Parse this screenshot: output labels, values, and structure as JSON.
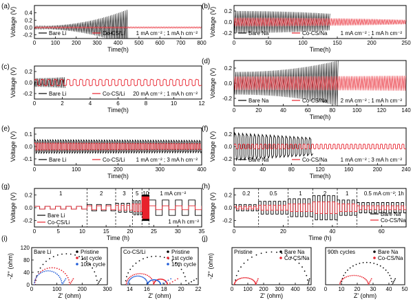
{
  "chart_data": [
    {
      "id": "a",
      "panel_label": "(a)",
      "type": "line",
      "xlabel": "Time(h)",
      "ylabel": "Voltage (V)",
      "xlim": [
        0,
        800
      ],
      "ylim": [
        -0.3,
        0.6
      ],
      "xticks": [
        "0",
        "100",
        "200",
        "300",
        "400",
        "500",
        "600",
        "700",
        "800"
      ],
      "yticks": [
        "-0.2",
        "0.0",
        "0.2",
        "0.4"
      ],
      "annotation": "1 mA cm⁻² ; 1 mA h cm⁻²",
      "legend_position": "bottom-left",
      "series": [
        {
          "name": "Bare Li",
          "color": "#000000",
          "x_end": 450,
          "amp_start": 0.04,
          "amp_end": 0.5,
          "dense": true
        },
        {
          "name": "Co-CS/Li",
          "color": "#e8212c",
          "x_end": 800,
          "amp_start": 0.02,
          "amp_end": 0.02,
          "dense": true
        }
      ]
    },
    {
      "id": "b",
      "panel_label": "(b)",
      "type": "line",
      "xlabel": "Time(h)",
      "ylabel": "Voltage (V)",
      "xlim": [
        0,
        250
      ],
      "ylim": [
        -0.3,
        0.3
      ],
      "xticks": [
        "0",
        "50",
        "100",
        "150",
        "200",
        "250"
      ],
      "yticks": [
        "-0.2",
        "0.0",
        "0.2"
      ],
      "annotation": "1 mA cm⁻² ; 1 mA h cm⁻²",
      "legend_position": "bottom-left",
      "series": [
        {
          "name": "Bare Na",
          "color": "#000000",
          "x_end": 140,
          "amp_start": 0.2,
          "amp_end": 0.15,
          "dense": true
        },
        {
          "name": "Co-CS/Na",
          "color": "#e8212c",
          "x_end": 250,
          "amp_start": 0.08,
          "amp_end": 0.04,
          "dense": true
        }
      ]
    },
    {
      "id": "c",
      "panel_label": "(c)",
      "type": "line",
      "xlabel": "Time(h)",
      "ylabel": "Voltage (V)",
      "xlim": [
        0,
        12
      ],
      "ylim": [
        -0.3,
        0.3
      ],
      "xticks": [
        "0",
        "2",
        "4",
        "6",
        "8",
        "10",
        "12"
      ],
      "yticks": [
        "-0.2",
        "0.0",
        "0.2"
      ],
      "annotation": "20 mA cm⁻² ; 1 mA h cm⁻²",
      "legend_position": "bottom-left",
      "series": [
        {
          "name": "Bare Li",
          "color": "#000000",
          "x_end": 2.2,
          "amp_start": 0.08,
          "amp_end": 0.1,
          "dense": true
        },
        {
          "name": "Co-CS/Li",
          "color": "#e8212c",
          "x_end": 12,
          "amp_start": 0.06,
          "amp_end": 0.06,
          "dense": false,
          "cycles": 26
        }
      ]
    },
    {
      "id": "d",
      "panel_label": "(d)",
      "type": "line",
      "xlabel": "Time(h)",
      "ylabel": "Voltage (V)",
      "xlim": [
        0,
        140
      ],
      "ylim": [
        -0.3,
        0.3
      ],
      "xticks": [
        "0",
        "20",
        "40",
        "60",
        "80",
        "100",
        "120",
        "140"
      ],
      "yticks": [
        "-0.2",
        "0.0",
        "0.2"
      ],
      "annotation": "2 mA cm⁻² ; 1 mA h cm⁻²",
      "legend_position": "bottom-left",
      "series": [
        {
          "name": "Bare Na",
          "color": "#000000",
          "x_end": 85,
          "amp_start": 0.15,
          "amp_end": 0.3,
          "dense": true
        },
        {
          "name": "Co-CS/Na",
          "color": "#e8212c",
          "x_end": 140,
          "amp_start": 0.09,
          "amp_end": 0.1,
          "dense": true
        }
      ]
    },
    {
      "id": "e",
      "panel_label": "(e)",
      "type": "line",
      "xlabel": "Time(h)",
      "ylabel": "Voltage (V)",
      "xlim": [
        0,
        400
      ],
      "ylim": [
        -0.15,
        0.15
      ],
      "xticks": [
        "0",
        "100",
        "200",
        "300",
        "400"
      ],
      "yticks": [
        "-0.1",
        "0.0",
        "0.1"
      ],
      "annotation": "1 mA cm⁻² ; 3 mA h cm⁻²",
      "legend_position": "bottom-left",
      "series": [
        {
          "name": "Bare Li",
          "color": "#000000",
          "x_end": 400,
          "amp_start": 0.055,
          "amp_end": 0.05,
          "dense": false,
          "cycles": 65
        },
        {
          "name": "Co-CS/Li",
          "color": "#e8212c",
          "x_end": 400,
          "amp_start": 0.03,
          "amp_end": 0.025,
          "dense": false,
          "cycles": 65
        }
      ]
    },
    {
      "id": "f",
      "panel_label": "(f)",
      "type": "line",
      "xlabel": "Time(h)",
      "ylabel": "Voltage (V)",
      "xlim": [
        0,
        240
      ],
      "ylim": [
        -0.3,
        0.3
      ],
      "xticks": [
        "0",
        "40",
        "80",
        "120",
        "160",
        "200",
        "240"
      ],
      "yticks": [
        "-0.2",
        "0.0",
        "0.2"
      ],
      "annotation": "1 mA cm⁻² ; 3 mA h cm⁻²",
      "legend_position": "bottom-left",
      "series": [
        {
          "name": "Bare Na",
          "color": "#000000",
          "x_end": 110,
          "amp_start": 0.22,
          "amp_end": 0.14,
          "dense": false,
          "cycles": 20
        },
        {
          "name": "Co-CS/Na",
          "color": "#e8212c",
          "x_end": 240,
          "amp_start": 0.04,
          "amp_end": 0.04,
          "dense": false,
          "cycles": 40
        }
      ]
    },
    {
      "id": "g",
      "panel_label": "(g)",
      "type": "line",
      "xlabel": "Time (h)",
      "ylabel": "Voltage (V)",
      "xlim": [
        0,
        35
      ],
      "ylim": [
        -0.3,
        0.3
      ],
      "xticks": [
        "0",
        "5",
        "10",
        "15",
        "20",
        "25",
        "30",
        "35"
      ],
      "yticks": [
        "-0.2",
        "0.0",
        "0.2"
      ],
      "dividers_x": [
        11,
        17,
        20.5,
        22.5,
        24
      ],
      "segment_labels": [
        {
          "text": "1",
          "x": 5.5
        },
        {
          "text": "2",
          "x": 14
        },
        {
          "text": "3",
          "x": 18.8
        },
        {
          "text": "5",
          "x": 21.5
        },
        {
          "text": "10",
          "x": 23.3
        },
        {
          "text": "1 mA cm⁻²",
          "x": 29
        }
      ],
      "annotation": "1 mA h cm⁻²",
      "legend_position": "bottom-left",
      "series": [
        {
          "name": "Bare Li",
          "color": "#000000",
          "segments": [
            [
              0,
              11,
              0.02,
              5
            ],
            [
              11,
              17,
              0.05,
              3
            ],
            [
              17,
              20.5,
              0.07,
              3
            ],
            [
              20.5,
              22.5,
              0.11,
              3
            ],
            [
              22.5,
              24,
              0.2,
              6
            ],
            [
              24,
              35,
              0.12,
              4
            ]
          ]
        },
        {
          "name": "Co-CS/Li",
          "color": "#e8212c",
          "segments": [
            [
              0,
              11,
              0.02,
              5
            ],
            [
              11,
              17,
              0.03,
              3
            ],
            [
              17,
              20.5,
              0.04,
              3
            ],
            [
              20.5,
              22.5,
              0.06,
              3
            ],
            [
              22.5,
              24,
              0.17,
              6
            ],
            [
              24,
              35,
              0.03,
              4
            ]
          ]
        }
      ]
    },
    {
      "id": "h",
      "panel_label": "(h)",
      "type": "line",
      "xlabel": "Time (h)",
      "ylabel": "Voltage (V)",
      "xlim": [
        0,
        70
      ],
      "ylim": [
        -0.3,
        0.3
      ],
      "xticks": [
        "0",
        "20",
        "40",
        "60"
      ],
      "yticks": [
        "-0.2",
        "0.0",
        "0.2"
      ],
      "dividers_x": [
        10,
        22,
        32,
        42,
        50
      ],
      "segment_labels": [
        {
          "text": "0.2",
          "x": 5
        },
        {
          "text": "0.5",
          "x": 16
        },
        {
          "text": "1",
          "x": 27
        },
        {
          "text": "2",
          "x": 37
        },
        {
          "text": "1",
          "x": 46
        },
        {
          "text": "0.5 mA cm⁻²; 1h",
          "x": 61
        }
      ],
      "legend_position": "bottom-right",
      "series": [
        {
          "name": "Bare Na",
          "color": "#000000",
          "segments": [
            [
              0,
              10,
              0.05,
              5
            ],
            [
              10,
              22,
              0.1,
              6
            ],
            [
              22,
              32,
              0.14,
              5
            ],
            [
              32,
              42,
              0.19,
              5
            ],
            [
              42,
              50,
              0.12,
              4
            ],
            [
              50,
              70,
              0.08,
              10
            ]
          ]
        },
        {
          "name": "Co-CS/Na",
          "color": "#e8212c",
          "segments": [
            [
              0,
              10,
              0.02,
              5
            ],
            [
              10,
              22,
              0.04,
              6
            ],
            [
              22,
              32,
              0.06,
              5
            ],
            [
              32,
              42,
              0.09,
              5
            ],
            [
              42,
              50,
              0.06,
              4
            ],
            [
              50,
              70,
              0.03,
              10
            ]
          ]
        }
      ]
    },
    {
      "id": "i1",
      "panel_label": "(i)",
      "type": "scatter",
      "title": "Bare Li",
      "xlabel": "Z' (ohm)",
      "ylabel": "-Z'' (ohm)",
      "xlim": [
        0,
        300
      ],
      "ylim": [
        0,
        120
      ],
      "xticks": [
        "0",
        "100",
        "200",
        "300"
      ],
      "yticks": [
        "0",
        "40",
        "80",
        "120"
      ],
      "legend_position": "top-right",
      "series": [
        {
          "name": "Pristine",
          "color": "#000000",
          "arcs": [
            {
              "x0": 15,
              "x1": 260,
              "height": 100
            }
          ],
          "tail": [
            260,
            275
          ]
        },
        {
          "name": "1st cycle",
          "color": "#e8212c",
          "arcs": [
            {
              "x0": 12,
              "x1": 150,
              "height": 55
            }
          ],
          "tail": [
            150,
            165
          ]
        },
        {
          "name": "10th cycle",
          "color": "#1e5bd8",
          "arcs": [
            {
              "x0": 10,
              "x1": 120,
              "height": 45
            }
          ],
          "tail": [
            120,
            135
          ]
        }
      ]
    },
    {
      "id": "i2",
      "panel_label": "",
      "type": "scatter",
      "title": "Co-CS/Li",
      "xlabel": "Z' (ohm)",
      "ylabel": "",
      "xlim": [
        13,
        22
      ],
      "ylim": [
        0,
        6
      ],
      "xticks": [
        "14",
        "16",
        "18",
        "20",
        "22"
      ],
      "yticks": [],
      "legend_position": "top-right",
      "series": [
        {
          "name": "Pristine",
          "color": "#000000",
          "arcs": [
            {
              "x0": 13.5,
              "x1": 20.6,
              "height": 4.6
            }
          ],
          "tail": [
            20.6,
            21.8
          ]
        },
        {
          "name": "1st cycle",
          "color": "#e8212c",
          "arcs": [
            {
              "x0": 13.6,
              "x1": 16.8,
              "height": 1.8
            },
            {
              "x0": 16.8,
              "x1": 18.4,
              "height": 0.9
            }
          ],
          "tail": [
            18.4,
            19.6
          ]
        },
        {
          "name": "10th cycle",
          "color": "#1e5bd8",
          "arcs": [
            {
              "x0": 13.8,
              "x1": 16.1,
              "height": 1.4
            },
            {
              "x0": 16.1,
              "x1": 17.6,
              "height": 0.8
            }
          ],
          "tail": [
            17.6,
            18.8
          ]
        }
      ]
    },
    {
      "id": "j1",
      "panel_label": "(j)",
      "type": "scatter",
      "title": "Pristine",
      "xlabel": "Z' (ohm)",
      "ylabel": "-Z'' (ohm)",
      "xlim": [
        0,
        500
      ],
      "ylim": [
        0,
        170
      ],
      "xticks": [
        "0",
        "100",
        "200",
        "300",
        "400",
        "500"
      ],
      "yticks": [],
      "legend_position": "top-right",
      "series": [
        {
          "name": "Bare Na",
          "color": "#000000",
          "arcs": [
            {
              "x0": 20,
              "x1": 480,
              "height": 150
            }
          ],
          "tail": [
            480,
            490
          ]
        },
        {
          "name": "Co-CS/Na",
          "color": "#e8212c",
          "arcs": [
            {
              "x0": 15,
              "x1": 150,
              "height": 32
            }
          ],
          "tail": [
            150,
            165
          ]
        }
      ]
    },
    {
      "id": "j2",
      "panel_label": "",
      "type": "scatter",
      "title": "90th cycles",
      "xlabel": "Z' (ohm)",
      "ylabel": "",
      "xlim": [
        0,
        50
      ],
      "ylim": [
        0,
        20
      ],
      "xticks": [
        "0",
        "10",
        "20",
        "30",
        "40",
        "50"
      ],
      "yticks": [],
      "legend_position": "top-right",
      "series": [
        {
          "name": "Bare Na",
          "color": "#000000",
          "arcs": [
            {
              "x0": 10,
              "x1": 42,
              "height": 12
            }
          ],
          "tail": [
            42,
            44
          ]
        },
        {
          "name": "Co-CS/Na",
          "color": "#e8212c",
          "arcs": [
            {
              "x0": 9,
              "x1": 27,
              "height": 5
            }
          ],
          "tail": [
            27,
            29
          ]
        }
      ]
    }
  ]
}
